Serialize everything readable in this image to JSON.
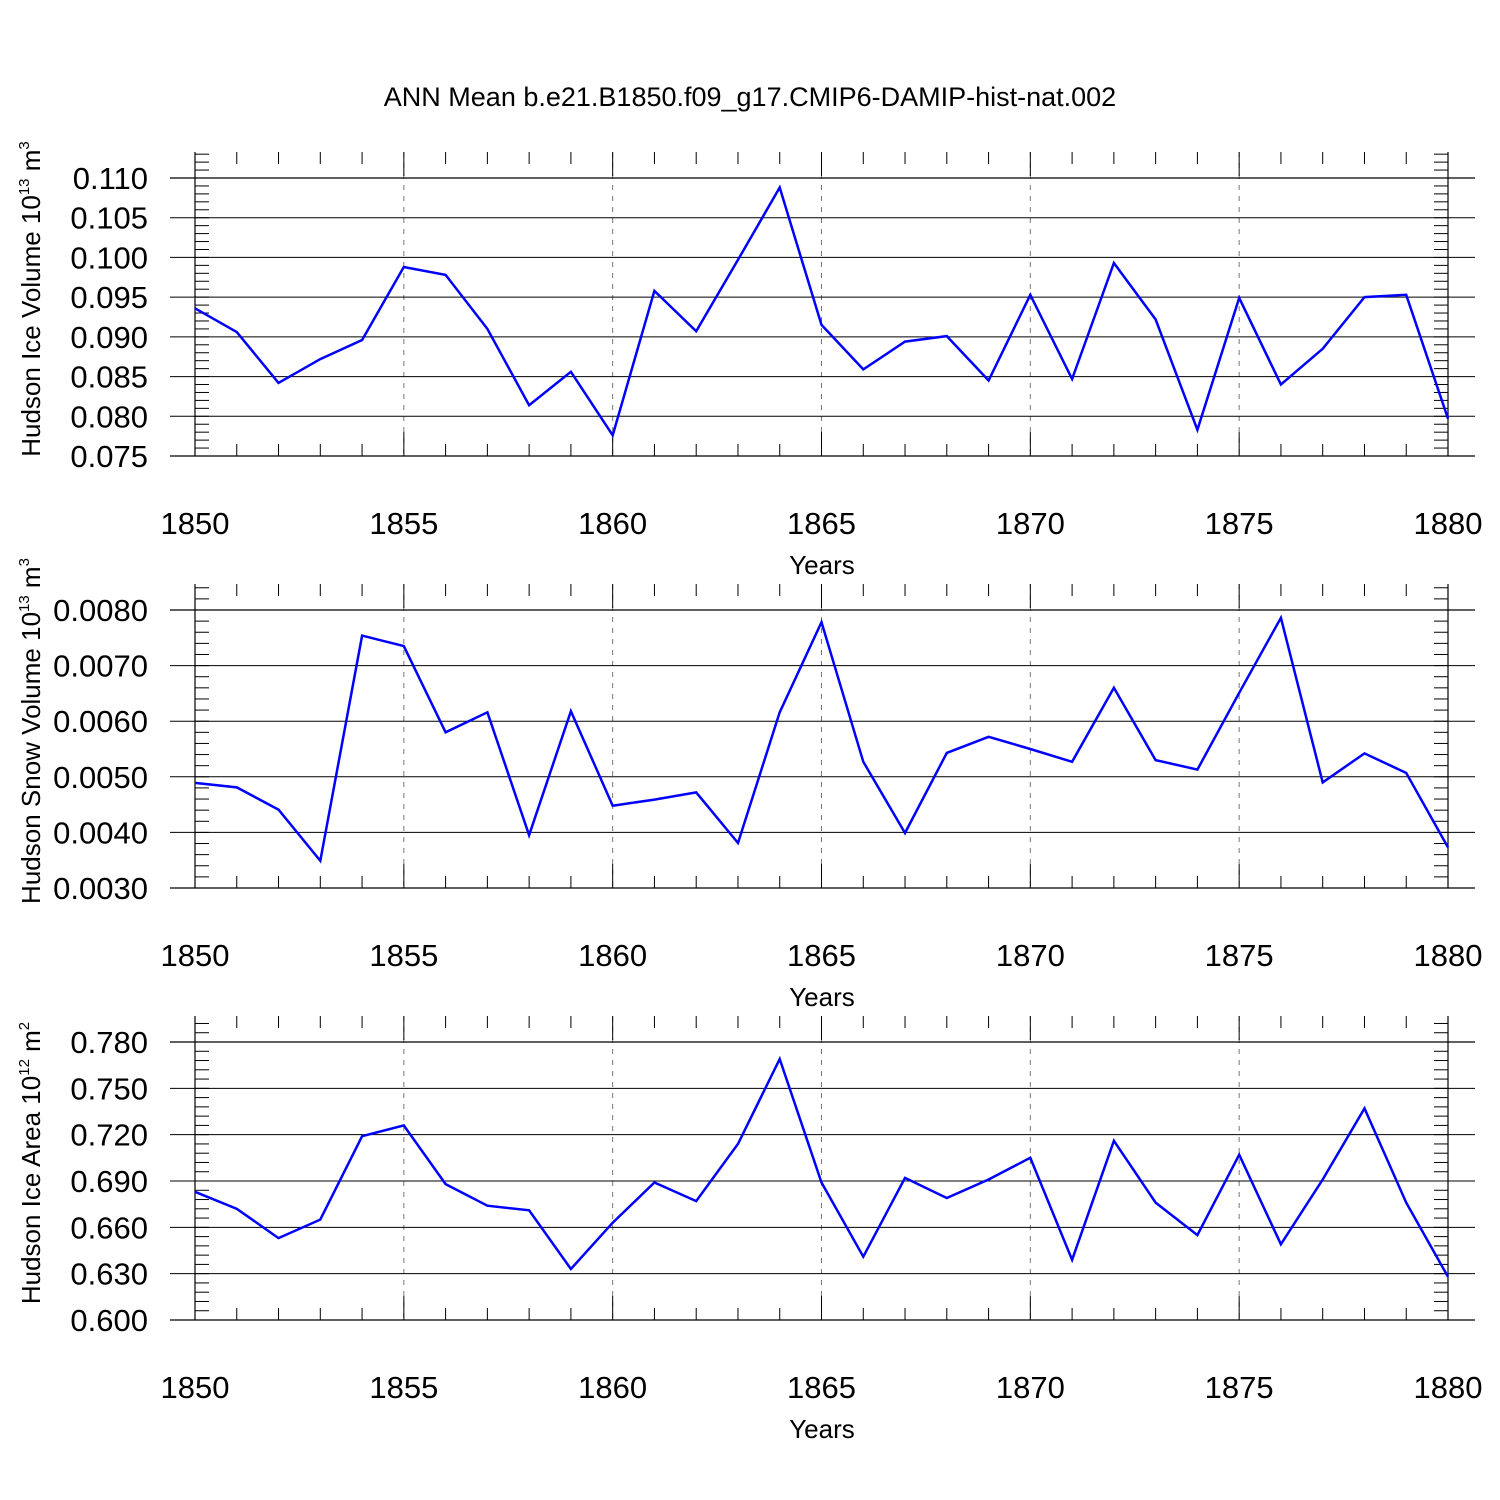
{
  "figure_title": "ANN Mean b.e21.B1850.f09_g17.CMIP6-DAMIP-hist-nat.002",
  "line_color": "#0000ff",
  "chart_data": [
    {
      "type": "line",
      "name": "ice-volume",
      "ylabel": {
        "text": "Hudson Ice Volume 10",
        "sup": "13",
        "unit": " m",
        "unit_sup": "3"
      },
      "xlabel": "Years",
      "xlim": [
        1850,
        1880
      ],
      "ylim": [
        0.075,
        0.113
      ],
      "xticks": [
        1850,
        1855,
        1860,
        1865,
        1870,
        1875,
        1880
      ],
      "xtick_labels": [
        "1850",
        "1855",
        "1860",
        "1865",
        "1870",
        "1875",
        "1880"
      ],
      "yticks": [
        0.075,
        0.08,
        0.085,
        0.09,
        0.095,
        0.1,
        0.105,
        0.11
      ],
      "ytick_labels": [
        "0.075",
        "0.080",
        "0.085",
        "0.090",
        "0.095",
        "0.100",
        "0.105",
        "0.110"
      ],
      "ygrid_ref": 0.11,
      "x": [
        1850,
        1851,
        1852,
        1853,
        1854,
        1855,
        1856,
        1857,
        1858,
        1859,
        1860,
        1861,
        1862,
        1863,
        1864,
        1865,
        1866,
        1867,
        1868,
        1869,
        1870,
        1871,
        1872,
        1873,
        1874,
        1875,
        1876,
        1877,
        1878,
        1879,
        1880
      ],
      "y": [
        0.0936,
        0.0906,
        0.0842,
        0.0872,
        0.0896,
        0.0988,
        0.0978,
        0.091,
        0.0814,
        0.0856,
        0.0776,
        0.0958,
        0.0907,
        0.0997,
        0.1088,
        0.0915,
        0.0859,
        0.0894,
        0.0901,
        0.0845,
        0.0953,
        0.0847,
        0.0993,
        0.0922,
        0.0783,
        0.0949,
        0.084,
        0.0885,
        0.095,
        0.0953,
        0.0797
      ]
    },
    {
      "type": "line",
      "name": "snow-volume",
      "ylabel": {
        "text": "Hudson Snow Volume 10",
        "sup": "13",
        "unit": " m",
        "unit_sup": "3"
      },
      "xlabel": "Years",
      "xlim": [
        1850,
        1880
      ],
      "ylim": [
        0.003,
        0.0084
      ],
      "xticks": [
        1850,
        1855,
        1860,
        1865,
        1870,
        1875,
        1880
      ],
      "xtick_labels": [
        "1850",
        "1855",
        "1860",
        "1865",
        "1870",
        "1875",
        "1880"
      ],
      "yticks": [
        0.003,
        0.004,
        0.005,
        0.006,
        0.007,
        0.008
      ],
      "ytick_labels": [
        "0.0030",
        "0.0040",
        "0.0050",
        "0.0060",
        "0.0070",
        "0.0080"
      ],
      "ygrid_ref": 0.008,
      "x": [
        1850,
        1851,
        1852,
        1853,
        1854,
        1855,
        1856,
        1857,
        1858,
        1859,
        1860,
        1861,
        1862,
        1863,
        1864,
        1865,
        1866,
        1867,
        1868,
        1869,
        1870,
        1871,
        1872,
        1873,
        1874,
        1875,
        1876,
        1877,
        1878,
        1879,
        1880
      ],
      "y": [
        0.00489,
        0.00481,
        0.00441,
        0.00349,
        0.00754,
        0.00735,
        0.0058,
        0.00616,
        0.00395,
        0.00618,
        0.00448,
        0.00459,
        0.00472,
        0.00381,
        0.00616,
        0.00778,
        0.00527,
        0.00399,
        0.00543,
        0.00572,
        0.0055,
        0.00527,
        0.0066,
        0.0053,
        0.00513,
        0.00651,
        0.00786,
        0.0049,
        0.00542,
        0.00507,
        0.00373
      ]
    },
    {
      "type": "line",
      "name": "ice-area",
      "ylabel": {
        "text": "Hudson Ice Area 10",
        "sup": "12",
        "unit": " m",
        "unit_sup": "2"
      },
      "xlabel": "Years",
      "xlim": [
        1850,
        1880
      ],
      "ylim": [
        0.6,
        0.797
      ],
      "xticks": [
        1850,
        1855,
        1860,
        1865,
        1870,
        1875,
        1880
      ],
      "xtick_labels": [
        "1850",
        "1855",
        "1860",
        "1865",
        "1870",
        "1875",
        "1880"
      ],
      "yticks": [
        0.6,
        0.63,
        0.66,
        0.69,
        0.72,
        0.75,
        0.78
      ],
      "ytick_labels": [
        "0.600",
        "0.630",
        "0.660",
        "0.690",
        "0.720",
        "0.750",
        "0.780"
      ],
      "ygrid_ref": 0.78,
      "x": [
        1850,
        1851,
        1852,
        1853,
        1854,
        1855,
        1856,
        1857,
        1858,
        1859,
        1860,
        1861,
        1862,
        1863,
        1864,
        1865,
        1866,
        1867,
        1868,
        1869,
        1870,
        1871,
        1872,
        1873,
        1874,
        1875,
        1876,
        1877,
        1878,
        1879,
        1880
      ],
      "y": [
        0.683,
        0.672,
        0.653,
        0.665,
        0.719,
        0.726,
        0.688,
        0.674,
        0.671,
        0.633,
        0.663,
        0.689,
        0.677,
        0.714,
        0.769,
        0.689,
        0.641,
        0.692,
        0.679,
        0.691,
        0.705,
        0.639,
        0.716,
        0.676,
        0.655,
        0.707,
        0.649,
        0.691,
        0.737,
        0.676,
        0.628
      ]
    }
  ]
}
